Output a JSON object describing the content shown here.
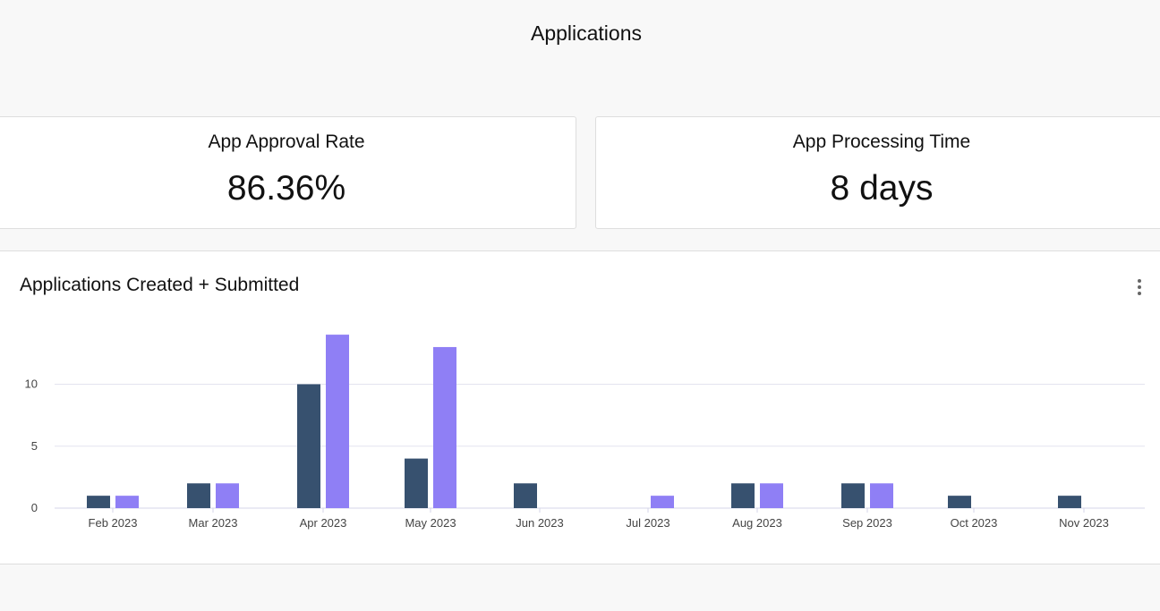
{
  "page": {
    "title": "Applications"
  },
  "kpis": [
    {
      "label": "App Approval Rate",
      "value": "86.36%"
    },
    {
      "label": "App Processing Time",
      "value": "8 days"
    }
  ],
  "chart_card": {
    "title": "Applications Created + Submitted",
    "menu_icon": "more-vertical-icon"
  },
  "chart_data": {
    "type": "bar",
    "title": "Applications Created + Submitted",
    "xlabel": "",
    "ylabel": "",
    "categories": [
      "Feb 2023",
      "Mar 2023",
      "Apr 2023",
      "May 2023",
      "Jun 2023",
      "Jul 2023",
      "Aug 2023",
      "Sep 2023",
      "Oct 2023",
      "Nov 2023"
    ],
    "series": [
      {
        "values": [
          1,
          2,
          10,
          4,
          2,
          0,
          2,
          2,
          1,
          1
        ],
        "color": "#37516f"
      },
      {
        "values": [
          1,
          2,
          14,
          13,
          0,
          1,
          2,
          2,
          0,
          0
        ],
        "color": "#8f7ff5"
      }
    ],
    "ylim": [
      0,
      14
    ],
    "yticks": [
      0,
      5,
      10
    ],
    "grid": true,
    "legend": "none"
  }
}
